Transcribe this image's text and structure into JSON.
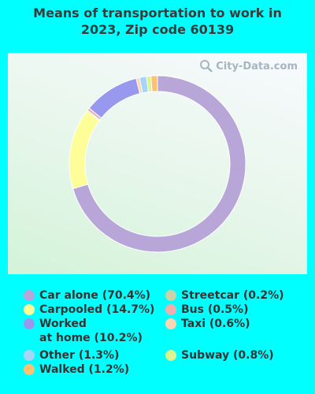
{
  "chart_data": {
    "type": "pie",
    "title": "Means of transportation to work in\n2023, Zip code 60139",
    "slices": [
      {
        "label": "Car alone (70.4%)",
        "value": 70.4,
        "color": "#b9a6d8"
      },
      {
        "label": "Carpooled (14.7%)",
        "value": 14.7,
        "color": "#fefe98"
      },
      {
        "label": "Streetcar (0.2%)",
        "value": 0.2,
        "color": "#c8d3a7"
      },
      {
        "label": "Bus (0.5%)",
        "value": 0.5,
        "color": "#f0aeaa"
      },
      {
        "label": "Worked\nat home (10.2%)",
        "value": 10.2,
        "color": "#9898ee"
      },
      {
        "label": "Taxi (0.6%)",
        "value": 0.6,
        "color": "#fad6b2"
      },
      {
        "label": "Other (1.3%)",
        "value": 1.3,
        "color": "#a8d4f8"
      },
      {
        "label": "Subway (0.8%)",
        "value": 0.8,
        "color": "#d8f590"
      },
      {
        "label": "Walked (1.2%)",
        "value": 1.2,
        "color": "#fbc270"
      }
    ],
    "legend_order": [
      0,
      2,
      1,
      3,
      4,
      5,
      6,
      7,
      8
    ]
  },
  "watermark": "City-Data.com"
}
